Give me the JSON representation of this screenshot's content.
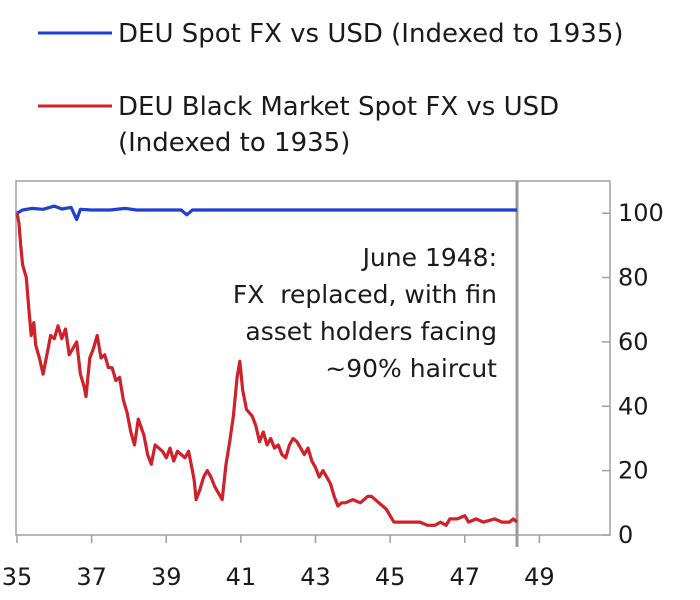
{
  "chart_data": {
    "type": "line",
    "title": "",
    "xlabel": "",
    "ylabel": "",
    "xlim": [
      1935,
      1948.4
    ],
    "ylim": [
      0,
      110
    ],
    "x_ticks": [
      {
        "value": 1935,
        "label": "35"
      },
      {
        "value": 1937,
        "label": "37"
      },
      {
        "value": 1939,
        "label": "39"
      },
      {
        "value": 1941,
        "label": "41"
      },
      {
        "value": 1943,
        "label": "43"
      },
      {
        "value": 1945,
        "label": "45"
      },
      {
        "value": 1947,
        "label": "47"
      },
      {
        "value": 1949,
        "label": "49"
      }
    ],
    "y_ticks": [
      {
        "value": 0,
        "label": "0"
      },
      {
        "value": 20,
        "label": "20"
      },
      {
        "value": 40,
        "label": "40"
      },
      {
        "value": 60,
        "label": "60"
      },
      {
        "value": 80,
        "label": "80"
      },
      {
        "value": 100,
        "label": "100"
      }
    ],
    "y_axis_side": "right",
    "grid": false,
    "legend_position": "top-left",
    "vertical_marker": {
      "x": 1948.4,
      "color": "#999999"
    },
    "annotation": {
      "lines": [
        "June 1948:",
        "FX  replaced, with fin",
        "asset holders facing",
        "~90% haircut"
      ]
    },
    "series": [
      {
        "name": "DEU Spot FX vs USD (Indexed to 1935)",
        "color": "#1f3fcf",
        "points": [
          [
            1935.0,
            100
          ],
          [
            1935.15,
            101
          ],
          [
            1935.4,
            101.5
          ],
          [
            1935.7,
            101.2
          ],
          [
            1936.0,
            102.2
          ],
          [
            1936.2,
            101.3
          ],
          [
            1936.45,
            101.8
          ],
          [
            1936.6,
            98.0
          ],
          [
            1936.7,
            101.2
          ],
          [
            1937.0,
            101.0
          ],
          [
            1937.5,
            101.0
          ],
          [
            1937.9,
            101.5
          ],
          [
            1938.2,
            101.0
          ],
          [
            1938.8,
            101.0
          ],
          [
            1939.4,
            101.0
          ],
          [
            1939.55,
            99.5
          ],
          [
            1939.7,
            101.0
          ],
          [
            1940.5,
            101.0
          ],
          [
            1942.0,
            101.0
          ],
          [
            1944.0,
            101.0
          ],
          [
            1946.0,
            101.0
          ],
          [
            1948.4,
            101.0
          ]
        ]
      },
      {
        "name": "DEU Black Market Spot FX vs USD (Indexed to 1935)",
        "color": "#d0202a",
        "points": [
          [
            1935.0,
            100
          ],
          [
            1935.05,
            97
          ],
          [
            1935.1,
            90
          ],
          [
            1935.15,
            84
          ],
          [
            1935.25,
            80
          ],
          [
            1935.32,
            70
          ],
          [
            1935.38,
            62
          ],
          [
            1935.45,
            66
          ],
          [
            1935.5,
            59
          ],
          [
            1935.6,
            55
          ],
          [
            1935.7,
            50
          ],
          [
            1935.8,
            56
          ],
          [
            1935.9,
            62
          ],
          [
            1936.0,
            61
          ],
          [
            1936.1,
            65
          ],
          [
            1936.2,
            61
          ],
          [
            1936.3,
            64
          ],
          [
            1936.4,
            56
          ],
          [
            1936.5,
            58
          ],
          [
            1936.6,
            60
          ],
          [
            1936.7,
            50
          ],
          [
            1936.8,
            46
          ],
          [
            1936.85,
            43
          ],
          [
            1936.95,
            55
          ],
          [
            1937.05,
            58
          ],
          [
            1937.15,
            62
          ],
          [
            1937.25,
            55
          ],
          [
            1937.35,
            56
          ],
          [
            1937.45,
            52
          ],
          [
            1937.55,
            52
          ],
          [
            1937.65,
            48
          ],
          [
            1937.75,
            49
          ],
          [
            1937.85,
            42
          ],
          [
            1937.95,
            38
          ],
          [
            1938.05,
            32
          ],
          [
            1938.15,
            28
          ],
          [
            1938.25,
            36
          ],
          [
            1938.4,
            31
          ],
          [
            1938.5,
            25
          ],
          [
            1938.6,
            22
          ],
          [
            1938.7,
            28
          ],
          [
            1938.8,
            27
          ],
          [
            1938.9,
            26
          ],
          [
            1939.0,
            24
          ],
          [
            1939.1,
            27
          ],
          [
            1939.2,
            23
          ],
          [
            1939.3,
            26
          ],
          [
            1939.4,
            25
          ],
          [
            1939.5,
            24
          ],
          [
            1939.6,
            26
          ],
          [
            1939.7,
            20
          ],
          [
            1939.75,
            17
          ],
          [
            1939.8,
            11
          ],
          [
            1939.9,
            14
          ],
          [
            1940.0,
            18
          ],
          [
            1940.1,
            20
          ],
          [
            1940.2,
            18
          ],
          [
            1940.3,
            15
          ],
          [
            1940.4,
            13
          ],
          [
            1940.5,
            11
          ],
          [
            1940.6,
            22
          ],
          [
            1940.7,
            29
          ],
          [
            1940.8,
            37
          ],
          [
            1940.9,
            49
          ],
          [
            1940.97,
            54
          ],
          [
            1941.05,
            45
          ],
          [
            1941.15,
            39
          ],
          [
            1941.3,
            37
          ],
          [
            1941.4,
            34
          ],
          [
            1941.5,
            29
          ],
          [
            1941.6,
            32
          ],
          [
            1941.7,
            28
          ],
          [
            1941.8,
            30
          ],
          [
            1941.9,
            27
          ],
          [
            1942.0,
            28
          ],
          [
            1942.1,
            25
          ],
          [
            1942.2,
            24
          ],
          [
            1942.3,
            28
          ],
          [
            1942.4,
            30
          ],
          [
            1942.5,
            29
          ],
          [
            1942.6,
            27
          ],
          [
            1942.7,
            25
          ],
          [
            1942.8,
            27
          ],
          [
            1942.9,
            23
          ],
          [
            1943.0,
            21
          ],
          [
            1943.1,
            18
          ],
          [
            1943.2,
            20
          ],
          [
            1943.3,
            18
          ],
          [
            1943.4,
            16
          ],
          [
            1943.5,
            12
          ],
          [
            1943.6,
            9
          ],
          [
            1943.7,
            10
          ],
          [
            1943.8,
            10
          ],
          [
            1944.0,
            11
          ],
          [
            1944.2,
            10
          ],
          [
            1944.4,
            12
          ],
          [
            1944.5,
            12
          ],
          [
            1944.6,
            11
          ],
          [
            1944.7,
            10
          ],
          [
            1944.8,
            9
          ],
          [
            1944.9,
            8
          ],
          [
            1945.0,
            6
          ],
          [
            1945.1,
            4
          ],
          [
            1945.5,
            4
          ],
          [
            1945.8,
            4
          ],
          [
            1946.0,
            3
          ],
          [
            1946.2,
            3
          ],
          [
            1946.35,
            4
          ],
          [
            1946.5,
            3
          ],
          [
            1946.6,
            5
          ],
          [
            1946.8,
            5
          ],
          [
            1947.0,
            6
          ],
          [
            1947.1,
            4
          ],
          [
            1947.3,
            5
          ],
          [
            1947.5,
            4
          ],
          [
            1947.8,
            5
          ],
          [
            1948.0,
            4
          ],
          [
            1948.2,
            4
          ],
          [
            1948.3,
            5
          ],
          [
            1948.4,
            4
          ]
        ]
      }
    ]
  }
}
